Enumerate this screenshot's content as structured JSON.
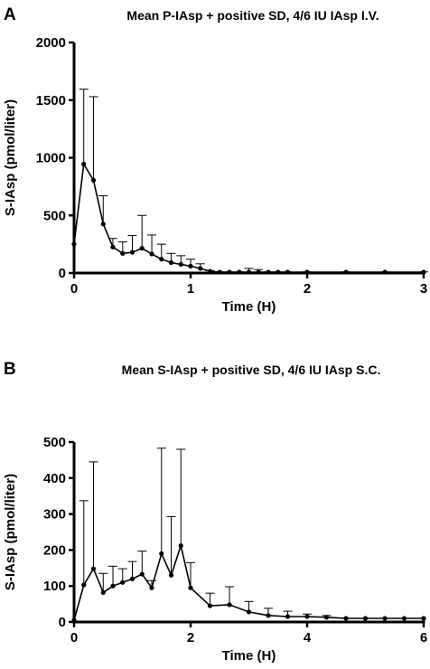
{
  "chart_data": [
    {
      "panel": "A",
      "type": "line",
      "title": "Mean P-IAsp + positive SD, 4/6 IU IAsp I.V.",
      "xlabel": "Time (H)",
      "ylabel": "S-IAsp (pmol/liter)",
      "xlim": [
        0,
        3
      ],
      "ylim": [
        0,
        2000
      ],
      "xticks": [
        0,
        1,
        2,
        3
      ],
      "yticks": [
        0,
        500,
        1000,
        1500,
        2000
      ],
      "grid": false,
      "series": [
        {
          "x": [
            0,
            0.083,
            0.167,
            0.25,
            0.333,
            0.417,
            0.5,
            0.583,
            0.667,
            0.75,
            0.833,
            0.917,
            1.0,
            1.083,
            1.167,
            1.25,
            1.333,
            1.417,
            1.5,
            1.583,
            1.667,
            1.75,
            1.833,
            2.0,
            2.333,
            2.667,
            3.0
          ],
          "y": [
            250,
            945,
            805,
            425,
            225,
            170,
            180,
            215,
            165,
            120,
            90,
            75,
            60,
            40,
            15,
            8,
            8,
            8,
            8,
            8,
            8,
            8,
            8,
            8,
            8,
            8,
            8
          ],
          "sd_upper": [
            250,
            1595,
            1530,
            670,
            300,
            270,
            325,
            500,
            330,
            250,
            170,
            150,
            120,
            80,
            20,
            10,
            10,
            10,
            40,
            30,
            10,
            10,
            10,
            10,
            10,
            10,
            10
          ]
        }
      ]
    },
    {
      "panel": "B",
      "type": "line",
      "title": "Mean S-IAsp + positive SD, 4/6 IU IAsp S.C.",
      "xlabel": "Time (H)",
      "ylabel": "S-IAsp (pmol/liter)",
      "xlim": [
        0,
        6
      ],
      "ylim": [
        0,
        500
      ],
      "xticks": [
        0,
        2,
        4,
        6
      ],
      "yticks": [
        0,
        100,
        200,
        300,
        400,
        500
      ],
      "grid": false,
      "series": [
        {
          "x": [
            0,
            0.167,
            0.333,
            0.5,
            0.667,
            0.833,
            1.0,
            1.167,
            1.333,
            1.5,
            1.667,
            1.833,
            2.0,
            2.333,
            2.667,
            3.0,
            3.333,
            3.667,
            4.0,
            4.333,
            4.667,
            5.0,
            5.333,
            5.667,
            6.0
          ],
          "y": [
            5,
            103,
            148,
            82,
            100,
            110,
            120,
            133,
            95,
            190,
            130,
            212,
            95,
            45,
            48,
            28,
            18,
            15,
            15,
            13,
            10,
            10,
            10,
            10,
            10
          ],
          "sd_upper": [
            5,
            337,
            445,
            135,
            155,
            148,
            168,
            197,
            115,
            483,
            293,
            480,
            165,
            80,
            98,
            57,
            38,
            30,
            22,
            18,
            10,
            10,
            10,
            10,
            10
          ]
        }
      ]
    }
  ]
}
